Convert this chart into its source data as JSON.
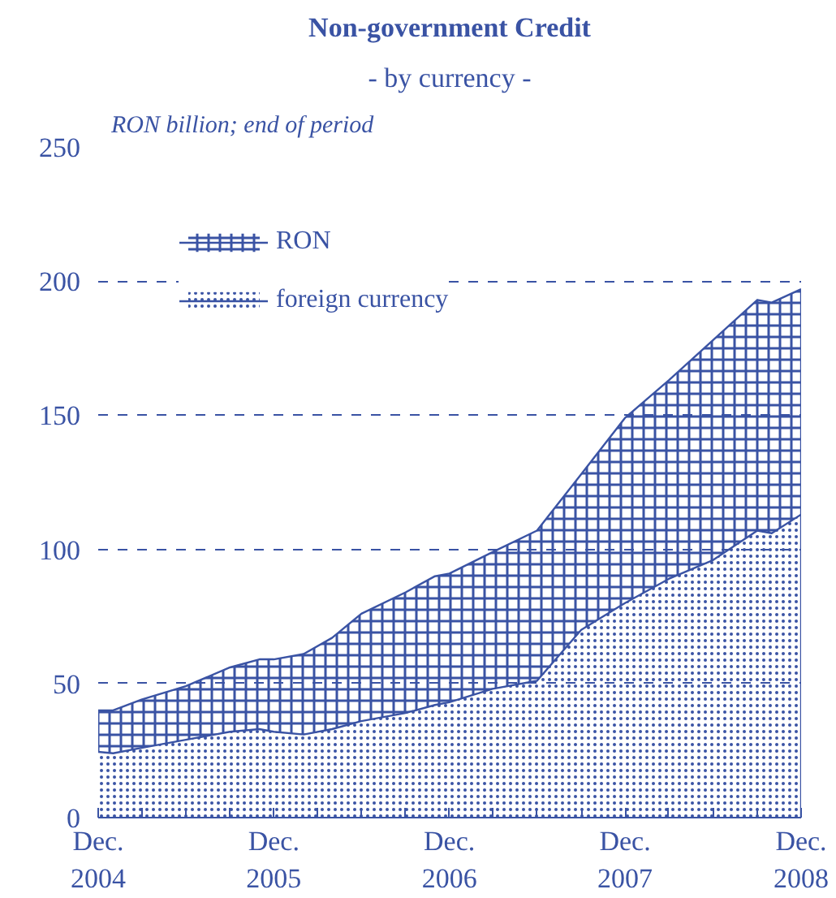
{
  "chart_data": {
    "type": "area",
    "stacked": true,
    "title": "Non-government Credit",
    "subtitle": "- by currency -",
    "annotations": [
      "RON billion; end of period"
    ],
    "x": [
      "2004-12",
      "2005-01",
      "2005-03",
      "2005-06",
      "2005-09",
      "2005-11",
      "2005-12",
      "2006-02",
      "2006-04",
      "2006-06",
      "2006-09",
      "2006-11",
      "2006-12",
      "2007-03",
      "2007-06",
      "2007-09",
      "2007-12",
      "2008-03",
      "2008-06",
      "2008-09",
      "2008-10",
      "2008-12"
    ],
    "series": [
      {
        "name": "foreign currency",
        "color": "#3a53a4",
        "values": [
          24.5,
          24,
          26,
          29,
          32,
          33,
          32,
          31,
          33,
          36,
          39,
          42,
          43,
          48,
          51,
          70,
          80,
          89,
          96,
          107,
          106,
          113
        ]
      },
      {
        "name": "RON",
        "color": "#3a53a4",
        "values": [
          15.5,
          16,
          18,
          20,
          24,
          26,
          27,
          30,
          34,
          40,
          45,
          48,
          48,
          51,
          56,
          58,
          69,
          74,
          82,
          86,
          86,
          84
        ]
      }
    ],
    "xlim": [
      "2004-12",
      "2008-12"
    ],
    "xticks": [
      {
        "value": "2004-12",
        "label": "Dec.\n2004"
      },
      {
        "value": "2005-03",
        "label": null
      },
      {
        "value": "2005-06",
        "label": null
      },
      {
        "value": "2005-09",
        "label": null
      },
      {
        "value": "2005-12",
        "label": "Dec.\n2005"
      },
      {
        "value": "2006-03",
        "label": null
      },
      {
        "value": "2006-06",
        "label": null
      },
      {
        "value": "2006-09",
        "label": null
      },
      {
        "value": "2006-12",
        "label": "Dec.\n2006"
      },
      {
        "value": "2007-03",
        "label": null
      },
      {
        "value": "2007-06",
        "label": null
      },
      {
        "value": "2007-09",
        "label": null
      },
      {
        "value": "2007-12",
        "label": "Dec.\n2007"
      },
      {
        "value": "2008-03",
        "label": null
      },
      {
        "value": "2008-06",
        "label": null
      },
      {
        "value": "2008-09",
        "label": null
      },
      {
        "value": "2008-12",
        "label": "Dec.\n2008"
      }
    ],
    "ylim": [
      0,
      250
    ],
    "yticks": [
      0,
      50,
      100,
      150,
      200,
      250
    ],
    "grid": "y",
    "legend": "top left"
  }
}
